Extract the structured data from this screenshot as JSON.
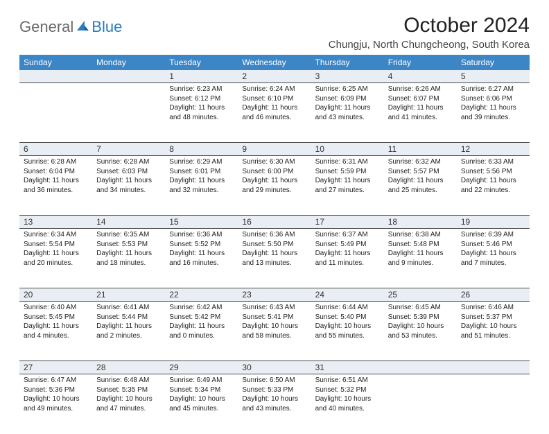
{
  "logo": {
    "text1": "General",
    "text2": "Blue"
  },
  "title": "October 2024",
  "location": "Chungju, North Chungcheong, South Korea",
  "header_bg": "#3d86c6",
  "daynum_bg": "#e8eef3",
  "border_color": "#4a4a4a",
  "weekdays": [
    "Sunday",
    "Monday",
    "Tuesday",
    "Wednesday",
    "Thursday",
    "Friday",
    "Saturday"
  ],
  "weeks": [
    [
      null,
      null,
      {
        "n": "1",
        "sunrise": "6:23 AM",
        "sunset": "6:12 PM",
        "daylight": "11 hours and 48 minutes."
      },
      {
        "n": "2",
        "sunrise": "6:24 AM",
        "sunset": "6:10 PM",
        "daylight": "11 hours and 46 minutes."
      },
      {
        "n": "3",
        "sunrise": "6:25 AM",
        "sunset": "6:09 PM",
        "daylight": "11 hours and 43 minutes."
      },
      {
        "n": "4",
        "sunrise": "6:26 AM",
        "sunset": "6:07 PM",
        "daylight": "11 hours and 41 minutes."
      },
      {
        "n": "5",
        "sunrise": "6:27 AM",
        "sunset": "6:06 PM",
        "daylight": "11 hours and 39 minutes."
      }
    ],
    [
      {
        "n": "6",
        "sunrise": "6:28 AM",
        "sunset": "6:04 PM",
        "daylight": "11 hours and 36 minutes."
      },
      {
        "n": "7",
        "sunrise": "6:28 AM",
        "sunset": "6:03 PM",
        "daylight": "11 hours and 34 minutes."
      },
      {
        "n": "8",
        "sunrise": "6:29 AM",
        "sunset": "6:01 PM",
        "daylight": "11 hours and 32 minutes."
      },
      {
        "n": "9",
        "sunrise": "6:30 AM",
        "sunset": "6:00 PM",
        "daylight": "11 hours and 29 minutes."
      },
      {
        "n": "10",
        "sunrise": "6:31 AM",
        "sunset": "5:59 PM",
        "daylight": "11 hours and 27 minutes."
      },
      {
        "n": "11",
        "sunrise": "6:32 AM",
        "sunset": "5:57 PM",
        "daylight": "11 hours and 25 minutes."
      },
      {
        "n": "12",
        "sunrise": "6:33 AM",
        "sunset": "5:56 PM",
        "daylight": "11 hours and 22 minutes."
      }
    ],
    [
      {
        "n": "13",
        "sunrise": "6:34 AM",
        "sunset": "5:54 PM",
        "daylight": "11 hours and 20 minutes."
      },
      {
        "n": "14",
        "sunrise": "6:35 AM",
        "sunset": "5:53 PM",
        "daylight": "11 hours and 18 minutes."
      },
      {
        "n": "15",
        "sunrise": "6:36 AM",
        "sunset": "5:52 PM",
        "daylight": "11 hours and 16 minutes."
      },
      {
        "n": "16",
        "sunrise": "6:36 AM",
        "sunset": "5:50 PM",
        "daylight": "11 hours and 13 minutes."
      },
      {
        "n": "17",
        "sunrise": "6:37 AM",
        "sunset": "5:49 PM",
        "daylight": "11 hours and 11 minutes."
      },
      {
        "n": "18",
        "sunrise": "6:38 AM",
        "sunset": "5:48 PM",
        "daylight": "11 hours and 9 minutes."
      },
      {
        "n": "19",
        "sunrise": "6:39 AM",
        "sunset": "5:46 PM",
        "daylight": "11 hours and 7 minutes."
      }
    ],
    [
      {
        "n": "20",
        "sunrise": "6:40 AM",
        "sunset": "5:45 PM",
        "daylight": "11 hours and 4 minutes."
      },
      {
        "n": "21",
        "sunrise": "6:41 AM",
        "sunset": "5:44 PM",
        "daylight": "11 hours and 2 minutes."
      },
      {
        "n": "22",
        "sunrise": "6:42 AM",
        "sunset": "5:42 PM",
        "daylight": "11 hours and 0 minutes."
      },
      {
        "n": "23",
        "sunrise": "6:43 AM",
        "sunset": "5:41 PM",
        "daylight": "10 hours and 58 minutes."
      },
      {
        "n": "24",
        "sunrise": "6:44 AM",
        "sunset": "5:40 PM",
        "daylight": "10 hours and 55 minutes."
      },
      {
        "n": "25",
        "sunrise": "6:45 AM",
        "sunset": "5:39 PM",
        "daylight": "10 hours and 53 minutes."
      },
      {
        "n": "26",
        "sunrise": "6:46 AM",
        "sunset": "5:37 PM",
        "daylight": "10 hours and 51 minutes."
      }
    ],
    [
      {
        "n": "27",
        "sunrise": "6:47 AM",
        "sunset": "5:36 PM",
        "daylight": "10 hours and 49 minutes."
      },
      {
        "n": "28",
        "sunrise": "6:48 AM",
        "sunset": "5:35 PM",
        "daylight": "10 hours and 47 minutes."
      },
      {
        "n": "29",
        "sunrise": "6:49 AM",
        "sunset": "5:34 PM",
        "daylight": "10 hours and 45 minutes."
      },
      {
        "n": "30",
        "sunrise": "6:50 AM",
        "sunset": "5:33 PM",
        "daylight": "10 hours and 43 minutes."
      },
      {
        "n": "31",
        "sunrise": "6:51 AM",
        "sunset": "5:32 PM",
        "daylight": "10 hours and 40 minutes."
      },
      null,
      null
    ]
  ],
  "labels": {
    "sunrise": "Sunrise:",
    "sunset": "Sunset:",
    "daylight": "Daylight:"
  }
}
